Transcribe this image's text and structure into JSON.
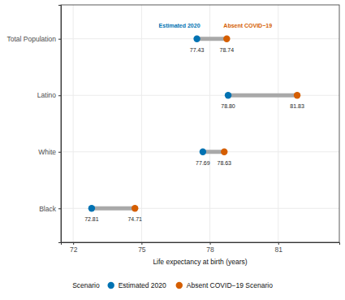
{
  "chart_data": {
    "type": "dumbbell",
    "orientation": "horizontal",
    "x_label": "Life expectancy at birth (years)",
    "categories": [
      "Total Population",
      "Latino",
      "White",
      "Black"
    ],
    "series": [
      {
        "name": "Estimated 2020",
        "color": "#0072B2",
        "values": [
          77.43,
          78.8,
          77.69,
          72.81
        ]
      },
      {
        "name": "Absent COVID−19 Scenario",
        "color": "#D55E00",
        "values": [
          78.74,
          81.83,
          78.63,
          74.71
        ]
      }
    ],
    "annotations": [
      "Estimated 2020",
      "Absent COVID−19"
    ],
    "xlim": [
      71.46,
      83.68
    ],
    "xticks": [
      72,
      75,
      78,
      81
    ],
    "grid": true,
    "data_labels": true,
    "legend": "bottom",
    "legend_title": "Scenario"
  }
}
